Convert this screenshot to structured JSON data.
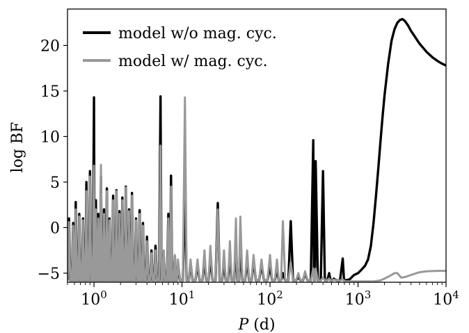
{
  "chart_data": {
    "type": "line",
    "title": "",
    "xlabel": "P (d)",
    "xlabel_italic": "P",
    "xlabel_unit": " (d)",
    "ylabel": "log BF",
    "xscale": "log",
    "xlim": [
      0.5,
      10000
    ],
    "ylim": [
      -6,
      24
    ],
    "xticks": [
      {
        "value": 1,
        "base": "10",
        "exp": "0"
      },
      {
        "value": 10,
        "base": "10",
        "exp": "1"
      },
      {
        "value": 100,
        "base": "10",
        "exp": "2"
      },
      {
        "value": 1000,
        "base": "10",
        "exp": "3"
      },
      {
        "value": 10000,
        "base": "10",
        "exp": "4"
      }
    ],
    "yticks": [
      {
        "value": -5,
        "label": "−5"
      },
      {
        "value": 0,
        "label": "0"
      },
      {
        "value": 5,
        "label": "5"
      },
      {
        "value": 10,
        "label": "10"
      },
      {
        "value": 15,
        "label": "15"
      },
      {
        "value": 20,
        "label": "20"
      }
    ],
    "legend_position": "top-left",
    "series": [
      {
        "name": "model w/o mag. cyc.",
        "color": "#000000",
        "baseline": -5.8,
        "peaks": [
          [
            0.52,
            1.0
          ],
          [
            0.58,
            0.5
          ],
          [
            0.62,
            2.8
          ],
          [
            0.68,
            1.5
          ],
          [
            0.75,
            1.0
          ],
          [
            0.82,
            5.0
          ],
          [
            0.9,
            6.2
          ],
          [
            1.0,
            14.3
          ],
          [
            1.05,
            3.0
          ],
          [
            1.12,
            1.5
          ],
          [
            1.2,
            5.6
          ],
          [
            1.3,
            2.0
          ],
          [
            1.4,
            4.3
          ],
          [
            1.5,
            1.0
          ],
          [
            1.65,
            3.5
          ],
          [
            1.8,
            4.1
          ],
          [
            1.95,
            1.8
          ],
          [
            2.1,
            3.3
          ],
          [
            2.3,
            4.5
          ],
          [
            2.5,
            2.0
          ],
          [
            2.7,
            3.8
          ],
          [
            3.0,
            1.0
          ],
          [
            3.3,
            1.9
          ],
          [
            3.6,
            0.5
          ],
          [
            4.0,
            -1.0
          ],
          [
            4.5,
            -2.5
          ],
          [
            5.0,
            -2.0
          ],
          [
            5.7,
            14.4
          ],
          [
            6.2,
            -3.0
          ],
          [
            7.0,
            1.5
          ],
          [
            7.5,
            5.7
          ],
          [
            8.3,
            -3.2
          ],
          [
            9.0,
            -4.0
          ],
          [
            10.8,
            4.5
          ],
          [
            12.5,
            -3.8
          ],
          [
            15.0,
            -4.0
          ],
          [
            18.0,
            -3.5
          ],
          [
            21.0,
            -3.3
          ],
          [
            25.5,
            2.7
          ],
          [
            30.0,
            -3.8
          ],
          [
            35.0,
            -3.0
          ],
          [
            41.0,
            -1.5
          ],
          [
            46.0,
            -2.0
          ],
          [
            55.0,
            -3.5
          ],
          [
            65.0,
            -3.5
          ],
          [
            80.0,
            -4.0
          ],
          [
            100.0,
            -4.2
          ],
          [
            120.0,
            -4.5
          ],
          [
            140.0,
            -5.0
          ],
          [
            172.0,
            0.7
          ],
          [
            210.0,
            -5.4
          ],
          [
            250.0,
            -5.0
          ],
          [
            310.0,
            9.6
          ],
          [
            330.0,
            7.3
          ],
          [
            400.0,
            6.2
          ],
          [
            470.0,
            -5.0
          ],
          [
            530.0,
            -5.6
          ],
          [
            670.0,
            -3.4
          ]
        ],
        "curve": [
          [
            700,
            -5.8
          ],
          [
            800,
            -5.7
          ],
          [
            900,
            -5.2
          ],
          [
            1000,
            -5.0
          ],
          [
            1100,
            -4.6
          ],
          [
            1200,
            -4.2
          ],
          [
            1300,
            -3.5
          ],
          [
            1400,
            -2.0
          ],
          [
            1500,
            0.5
          ],
          [
            1600,
            3.5
          ],
          [
            1700,
            6.5
          ],
          [
            1800,
            9.5
          ],
          [
            1900,
            12.2
          ],
          [
            2000,
            14.5
          ],
          [
            2200,
            18.0
          ],
          [
            2400,
            20.5
          ],
          [
            2600,
            21.8
          ],
          [
            2800,
            22.5
          ],
          [
            3000,
            22.8
          ],
          [
            3200,
            22.9
          ],
          [
            3400,
            22.7
          ],
          [
            3700,
            22.2
          ],
          [
            4000,
            21.6
          ],
          [
            5000,
            20.2
          ],
          [
            6000,
            19.3
          ],
          [
            7000,
            18.7
          ],
          [
            8000,
            18.3
          ],
          [
            9000,
            18.0
          ],
          [
            10000,
            17.8
          ]
        ]
      },
      {
        "name": "model w/ mag. cyc.",
        "color": "#999999",
        "baseline": -5.8,
        "peaks": [
          [
            0.52,
            0.6
          ],
          [
            0.58,
            0.2
          ],
          [
            0.62,
            2.0
          ],
          [
            0.68,
            1.2
          ],
          [
            0.75,
            0.8
          ],
          [
            0.82,
            4.0
          ],
          [
            0.9,
            5.6
          ],
          [
            1.0,
            6.8
          ],
          [
            1.05,
            2.0
          ],
          [
            1.12,
            1.0
          ],
          [
            1.2,
            6.9
          ],
          [
            1.3,
            1.5
          ],
          [
            1.4,
            4.0
          ],
          [
            1.5,
            0.8
          ],
          [
            1.65,
            3.0
          ],
          [
            1.8,
            4.0
          ],
          [
            1.95,
            1.5
          ],
          [
            2.1,
            3.0
          ],
          [
            2.3,
            4.4
          ],
          [
            2.5,
            1.8
          ],
          [
            2.7,
            3.5
          ],
          [
            3.0,
            0.8
          ],
          [
            3.3,
            1.5
          ],
          [
            3.6,
            0.2
          ],
          [
            4.0,
            -1.5
          ],
          [
            4.5,
            -2.8
          ],
          [
            5.0,
            -2.5
          ],
          [
            5.7,
            9.0
          ],
          [
            6.2,
            -2.5
          ],
          [
            7.0,
            1.0
          ],
          [
            7.5,
            4.5
          ],
          [
            8.3,
            -3.0
          ],
          [
            9.0,
            -3.5
          ],
          [
            10.8,
            14.3
          ],
          [
            12.5,
            -3.5
          ],
          [
            15.0,
            -3.5
          ],
          [
            18.0,
            -2.5
          ],
          [
            21.0,
            -2.0
          ],
          [
            25.5,
            2.0
          ],
          [
            30.0,
            -2.5
          ],
          [
            35.0,
            -1.5
          ],
          [
            41.0,
            1.0
          ],
          [
            46.0,
            1.2
          ],
          [
            55.0,
            -2.5
          ],
          [
            65.0,
            -3.0
          ],
          [
            80.0,
            -3.5
          ],
          [
            100.0,
            -3.0
          ],
          [
            120.0,
            -3.5
          ],
          [
            140.0,
            0.7
          ],
          [
            172.0,
            -3.8
          ],
          [
            210.0,
            -5.0
          ],
          [
            250.0,
            -4.8
          ],
          [
            310.0,
            -4.5
          ],
          [
            330.0,
            -4.5
          ],
          [
            400.0,
            -5.5
          ],
          [
            470.0,
            -5.6
          ],
          [
            530.0,
            -5.7
          ],
          [
            670.0,
            -5.7
          ]
        ],
        "curve": [
          [
            700,
            -5.9
          ],
          [
            900,
            -5.9
          ],
          [
            1200,
            -5.9
          ],
          [
            1500,
            -5.9
          ],
          [
            1800,
            -5.8
          ],
          [
            2000,
            -5.6
          ],
          [
            2300,
            -5.3
          ],
          [
            2600,
            -5.0
          ],
          [
            2800,
            -5.0
          ],
          [
            3100,
            -5.5
          ],
          [
            3500,
            -5.4
          ],
          [
            4000,
            -5.2
          ],
          [
            5000,
            -4.9
          ],
          [
            6000,
            -4.8
          ],
          [
            8000,
            -4.75
          ],
          [
            10000,
            -4.75
          ]
        ]
      }
    ]
  }
}
